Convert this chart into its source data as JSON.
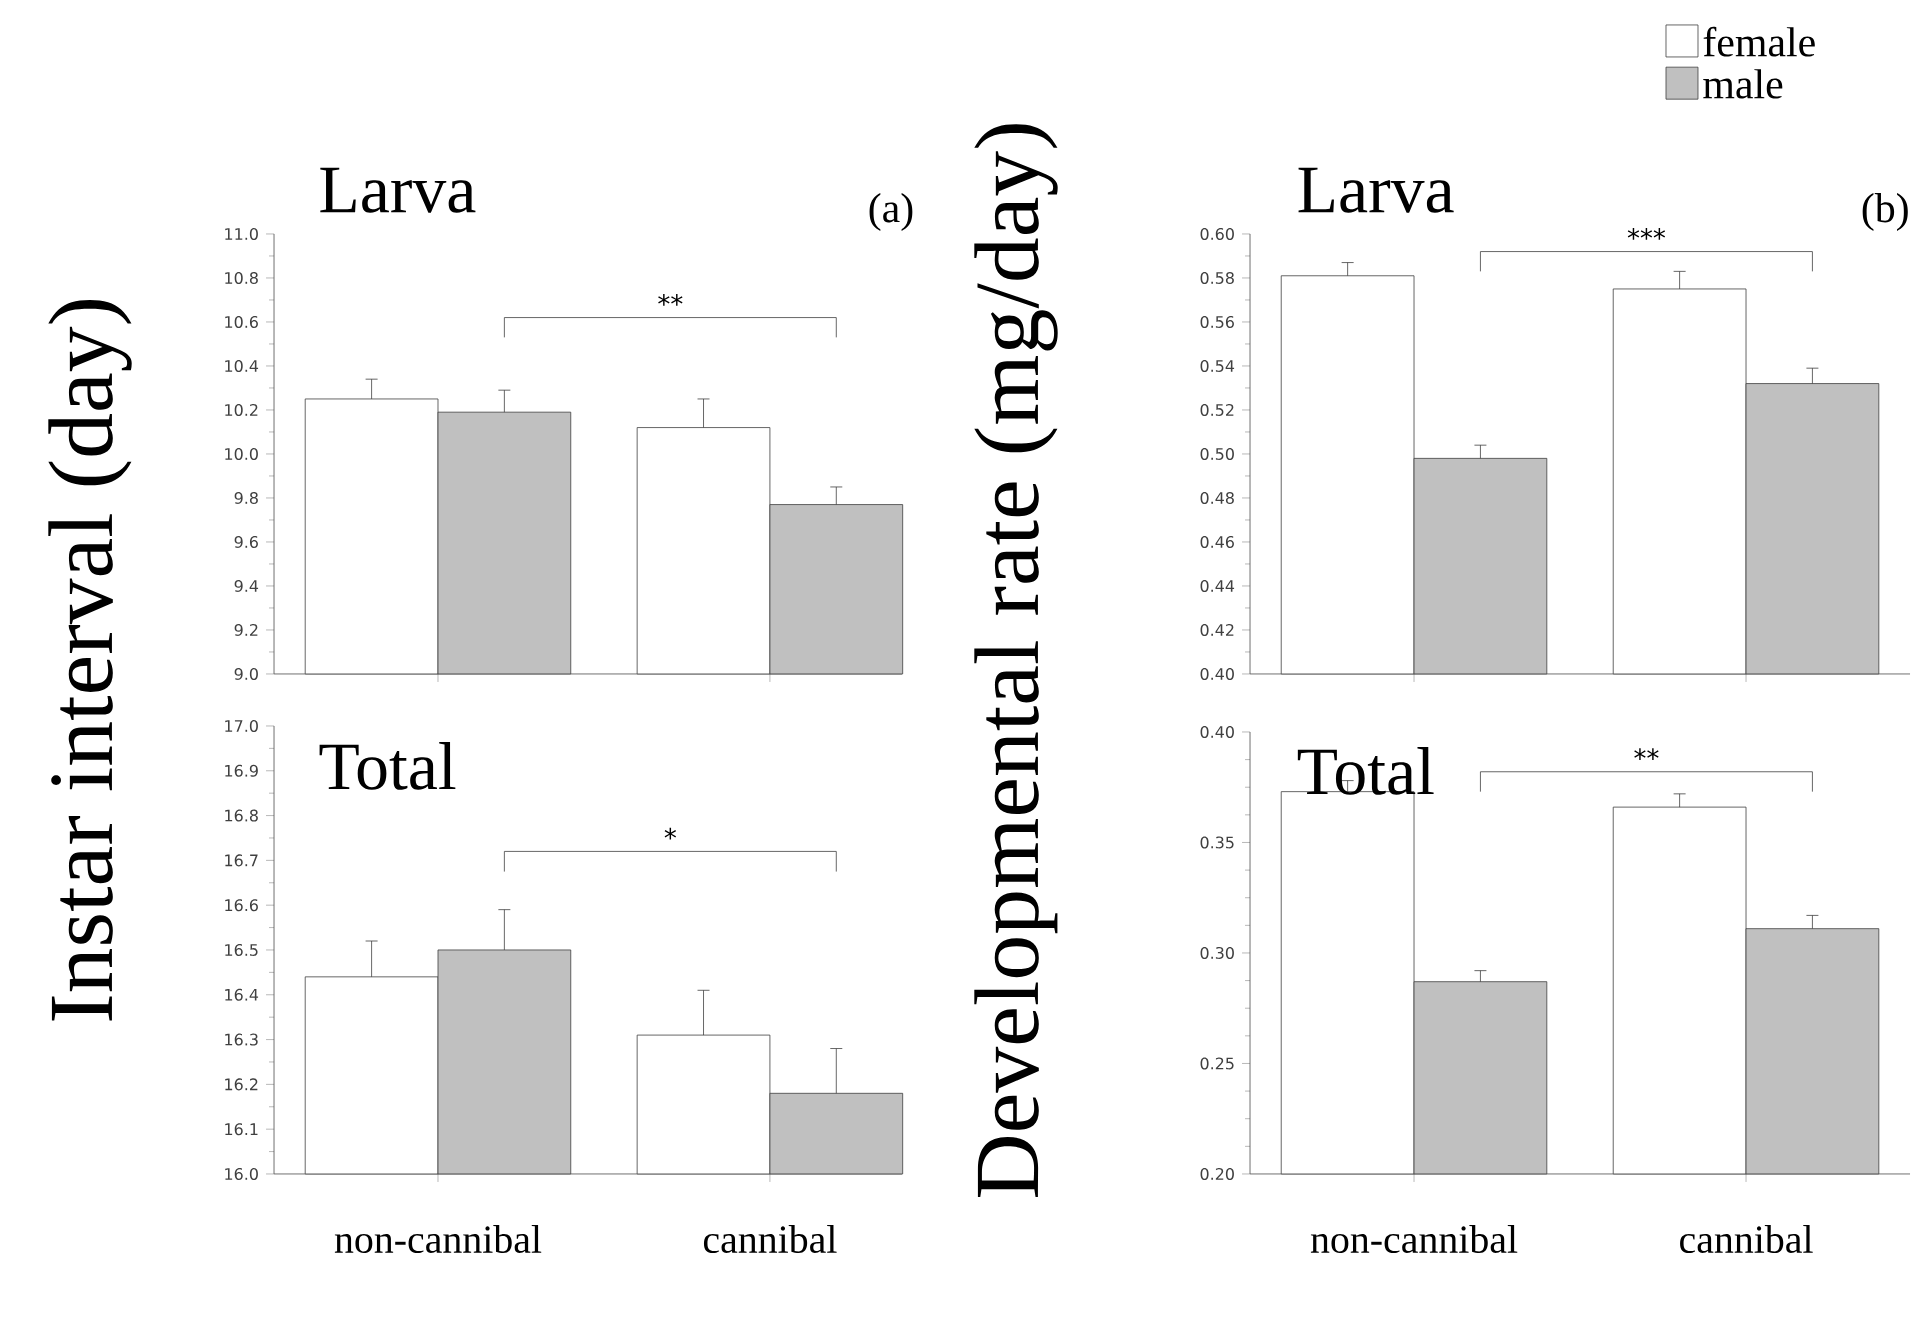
{
  "chart_data": [
    {
      "type": "bar",
      "title": "Larva",
      "ylabel": "Instar interval (day)",
      "categories": [
        null,
        null
      ],
      "tick_labels": "y",
      "series": [
        {
          "color": "#ffffff",
          "values": [
            10.25,
            10.12
          ],
          "errors": [
            0.09,
            0.13
          ]
        },
        {
          "color": "#c0c0c0",
          "values": [
            10.19,
            9.77
          ],
          "errors": [
            0.1,
            0.08
          ]
        }
      ],
      "ylim": [
        9.0,
        11.0
      ],
      "yticks": [
        {
          "value": 9.0,
          "label": "9.0"
        },
        {
          "value": 9.1,
          "label": null
        },
        {
          "value": 9.2,
          "label": "9.2"
        },
        {
          "value": 9.3,
          "label": null
        },
        {
          "value": 9.4,
          "label": "9.4"
        },
        {
          "value": 9.5,
          "label": null
        },
        {
          "value": 9.6,
          "label": "9.6"
        },
        {
          "value": 9.7,
          "label": null
        },
        {
          "value": 9.8,
          "label": "9.8"
        },
        {
          "value": 9.9,
          "label": null
        },
        {
          "value": 10.0,
          "label": "10.0"
        },
        {
          "value": 10.1,
          "label": null
        },
        {
          "value": 10.2,
          "label": "10.2"
        },
        {
          "value": 10.3,
          "label": null
        },
        {
          "value": 10.4,
          "label": "10.4"
        },
        {
          "value": 10.5,
          "label": null
        },
        {
          "value": 10.6,
          "label": "10.6"
        },
        {
          "value": 10.7,
          "label": null
        },
        {
          "value": 10.8,
          "label": "10.8"
        },
        {
          "value": 10.9,
          "label": null
        },
        {
          "value": 11.0,
          "label": "11.0"
        }
      ],
      "annotations": [
        "(a)",
        "**"
      ]
    },
    {
      "type": "bar",
      "title": "Total",
      "categories": [
        "non-cannibal",
        "cannibal"
      ],
      "series": [
        {
          "color": "#ffffff",
          "values": [
            16.44,
            16.31
          ],
          "errors": [
            0.08,
            0.1
          ]
        },
        {
          "color": "#c0c0c0",
          "values": [
            16.5,
            16.18
          ],
          "errors": [
            0.09,
            0.1
          ]
        }
      ],
      "ylim": [
        16.0,
        17.0
      ],
      "yticks": [
        {
          "value": 16.0,
          "label": "16.0"
        },
        {
          "value": 16.05,
          "label": null
        },
        {
          "value": 16.1,
          "label": "16.1"
        },
        {
          "value": 16.15,
          "label": null
        },
        {
          "value": 16.2,
          "label": "16.2"
        },
        {
          "value": 16.25,
          "label": null
        },
        {
          "value": 16.3,
          "label": "16.3"
        },
        {
          "value": 16.35,
          "label": null
        },
        {
          "value": 16.4,
          "label": "16.4"
        },
        {
          "value": 16.45,
          "label": null
        },
        {
          "value": 16.5,
          "label": "16.5"
        },
        {
          "value": 16.55,
          "label": null
        },
        {
          "value": 16.6,
          "label": "16.6"
        },
        {
          "value": 16.65,
          "label": null
        },
        {
          "value": 16.7,
          "label": "16.7"
        },
        {
          "value": 16.75,
          "label": null
        },
        {
          "value": 16.8,
          "label": "16.8"
        },
        {
          "value": 16.85,
          "label": null
        },
        {
          "value": 16.9,
          "label": "16.9"
        },
        {
          "value": 16.95,
          "label": null
        },
        {
          "value": 17.0,
          "label": "17.0"
        }
      ],
      "annotations": [
        "*"
      ]
    },
    {
      "type": "bar",
      "title": "Larva",
      "ylabel": "Developmental rate (mg/day)",
      "categories": [
        null,
        null
      ],
      "tick_labels": "y",
      "legend": "top right",
      "series": [
        {
          "name": "female",
          "color": "#ffffff",
          "values": [
            0.581,
            0.575
          ],
          "errors": [
            0.006,
            0.008
          ]
        },
        {
          "name": "male",
          "color": "#c0c0c0",
          "values": [
            0.498,
            0.532
          ],
          "errors": [
            0.006,
            0.007
          ]
        }
      ],
      "ylim": [
        0.4,
        0.6
      ],
      "yticks": [
        {
          "value": 0.4,
          "label": "0.40"
        },
        {
          "value": 0.41,
          "label": null
        },
        {
          "value": 0.42,
          "label": "0.42"
        },
        {
          "value": 0.43,
          "label": null
        },
        {
          "value": 0.44,
          "label": "0.44"
        },
        {
          "value": 0.45,
          "label": null
        },
        {
          "value": 0.46,
          "label": "0.46"
        },
        {
          "value": 0.47,
          "label": null
        },
        {
          "value": 0.48,
          "label": "0.48"
        },
        {
          "value": 0.49,
          "label": null
        },
        {
          "value": 0.5,
          "label": "0.50"
        },
        {
          "value": 0.51,
          "label": null
        },
        {
          "value": 0.52,
          "label": "0.52"
        },
        {
          "value": 0.53,
          "label": null
        },
        {
          "value": 0.54,
          "label": "0.54"
        },
        {
          "value": 0.55,
          "label": null
        },
        {
          "value": 0.56,
          "label": "0.56"
        },
        {
          "value": 0.57,
          "label": null
        },
        {
          "value": 0.58,
          "label": "0.58"
        },
        {
          "value": 0.59,
          "label": null
        },
        {
          "value": 0.6,
          "label": "0.60"
        }
      ],
      "annotations": [
        "(b)",
        "***"
      ]
    },
    {
      "type": "bar",
      "title": "Total",
      "categories": [
        "non-cannibal",
        "cannibal"
      ],
      "series": [
        {
          "color": "#ffffff",
          "values": [
            0.373,
            0.366
          ],
          "errors": [
            0.005,
            0.006
          ]
        },
        {
          "color": "#c0c0c0",
          "values": [
            0.287,
            0.311
          ],
          "errors": [
            0.005,
            0.006
          ]
        }
      ],
      "ylim": [
        0.2,
        0.4
      ],
      "yticks": [
        {
          "value": 0.2,
          "label": "0.20"
        },
        {
          "value": 0.2125,
          "label": null
        },
        {
          "value": 0.225,
          "label": null
        },
        {
          "value": 0.2375,
          "label": null
        },
        {
          "value": 0.25,
          "label": "0.25"
        },
        {
          "value": 0.2625,
          "label": null
        },
        {
          "value": 0.275,
          "label": null
        },
        {
          "value": 0.2875,
          "label": null
        },
        {
          "value": 0.3,
          "label": "0.30"
        },
        {
          "value": 0.3125,
          "label": null
        },
        {
          "value": 0.325,
          "label": null
        },
        {
          "value": 0.3375,
          "label": null
        },
        {
          "value": 0.35,
          "label": "0.35"
        },
        {
          "value": 0.3625,
          "label": null
        },
        {
          "value": 0.375,
          "label": null
        },
        {
          "value": 0.3875,
          "label": null
        },
        {
          "value": 0.4,
          "label": "0.40"
        }
      ],
      "annotations": [
        "**"
      ]
    }
  ]
}
